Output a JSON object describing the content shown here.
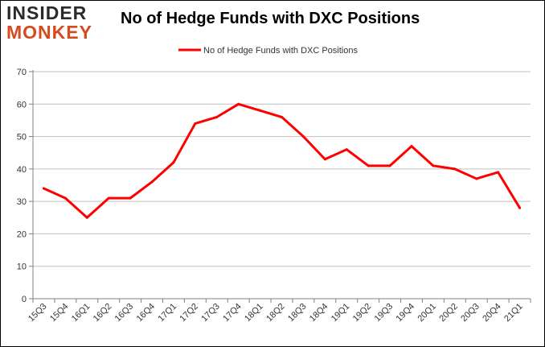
{
  "branding": {
    "logo_line1": "INSIDER",
    "logo_line2": "MONKEY"
  },
  "chart_data": {
    "type": "line",
    "title": "No of Hedge Funds with DXC Positions",
    "xlabel": "",
    "ylabel": "",
    "categories": [
      "15Q3",
      "15Q4",
      "16Q1",
      "16Q2",
      "16Q3",
      "16Q4",
      "17Q1",
      "17Q2",
      "17Q3",
      "17Q4",
      "18Q1",
      "18Q2",
      "18Q3",
      "18Q4",
      "19Q1",
      "19Q2",
      "19Q3",
      "19Q4",
      "20Q1",
      "20Q2",
      "20Q3",
      "20Q4",
      "21Q1"
    ],
    "series": [
      {
        "name": "No of Hedge Funds with DXC Positions",
        "color": "#ff0000",
        "values": [
          34,
          31,
          25,
          31,
          31,
          36,
          42,
          54,
          56,
          60,
          58,
          56,
          50,
          43,
          46,
          41,
          41,
          47,
          41,
          40,
          37,
          39,
          28
        ]
      }
    ],
    "ylim": [
      0,
      70
    ],
    "yticks": [
      0,
      10,
      20,
      30,
      40,
      50,
      60,
      70
    ],
    "grid": true,
    "legend": "top-center"
  }
}
